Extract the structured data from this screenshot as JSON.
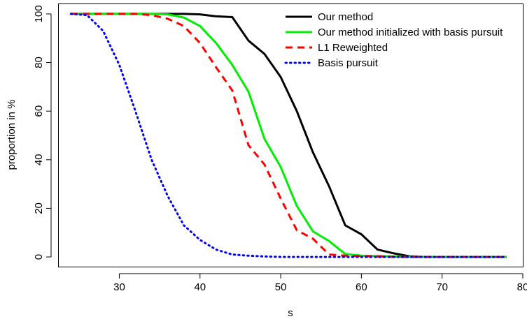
{
  "chart_data": {
    "type": "line",
    "title": "",
    "xlabel": "s",
    "ylabel": "proportion in %",
    "xlim": [
      22.5,
      80
    ],
    "ylim": [
      -4,
      104
    ],
    "x_ticks": [
      30,
      40,
      50,
      60,
      70,
      80
    ],
    "y_ticks": [
      0,
      20,
      40,
      60,
      80,
      100
    ],
    "grid": false,
    "legend_position": "top-right",
    "x": [
      24,
      26,
      28,
      30,
      32,
      34,
      36,
      38,
      40,
      42,
      44,
      46,
      48,
      50,
      52,
      54,
      56,
      58,
      60,
      62,
      64,
      66,
      68,
      70,
      72,
      74,
      76,
      78
    ],
    "series": [
      {
        "name": "Our method",
        "color": "#000000",
        "dash": "solid",
        "values": [
          100,
          100,
          100,
          100,
          100,
          100,
          100,
          100,
          99.8,
          99,
          98.7,
          89,
          83.5,
          74,
          60,
          43,
          29,
          13,
          9.3,
          3,
          1.5,
          0.2,
          0,
          0,
          0,
          0,
          0,
          0
        ]
      },
      {
        "name": "Our method initialized with basis pursuit",
        "color": "#00ee00",
        "dash": "solid",
        "values": [
          100,
          100,
          100,
          100,
          100,
          100,
          99.8,
          98.5,
          95,
          88,
          79,
          68,
          48.5,
          37,
          21,
          10.5,
          6.5,
          1.2,
          0.5,
          0.4,
          0.2,
          0,
          0,
          0,
          0,
          0,
          0,
          0
        ]
      },
      {
        "name": "L1 Reweighted",
        "color": "#ff0000",
        "dash": "dashed",
        "values": [
          100,
          100,
          100,
          100,
          100,
          99.5,
          98,
          95,
          88,
          78,
          68.5,
          46,
          38,
          24,
          11,
          7.5,
          1,
          0.5,
          0.3,
          0.2,
          0,
          0,
          0,
          0,
          0,
          0,
          0,
          0
        ]
      },
      {
        "name": "Basis pursuit",
        "color": "#0000ff",
        "dash": "dotted",
        "values": [
          100,
          99.5,
          93,
          79,
          60,
          40,
          25,
          13,
          7,
          3,
          1,
          0.5,
          0.2,
          0,
          0,
          0,
          0,
          0,
          0,
          0,
          0,
          0,
          0,
          0,
          0,
          0,
          0,
          0
        ]
      }
    ]
  }
}
